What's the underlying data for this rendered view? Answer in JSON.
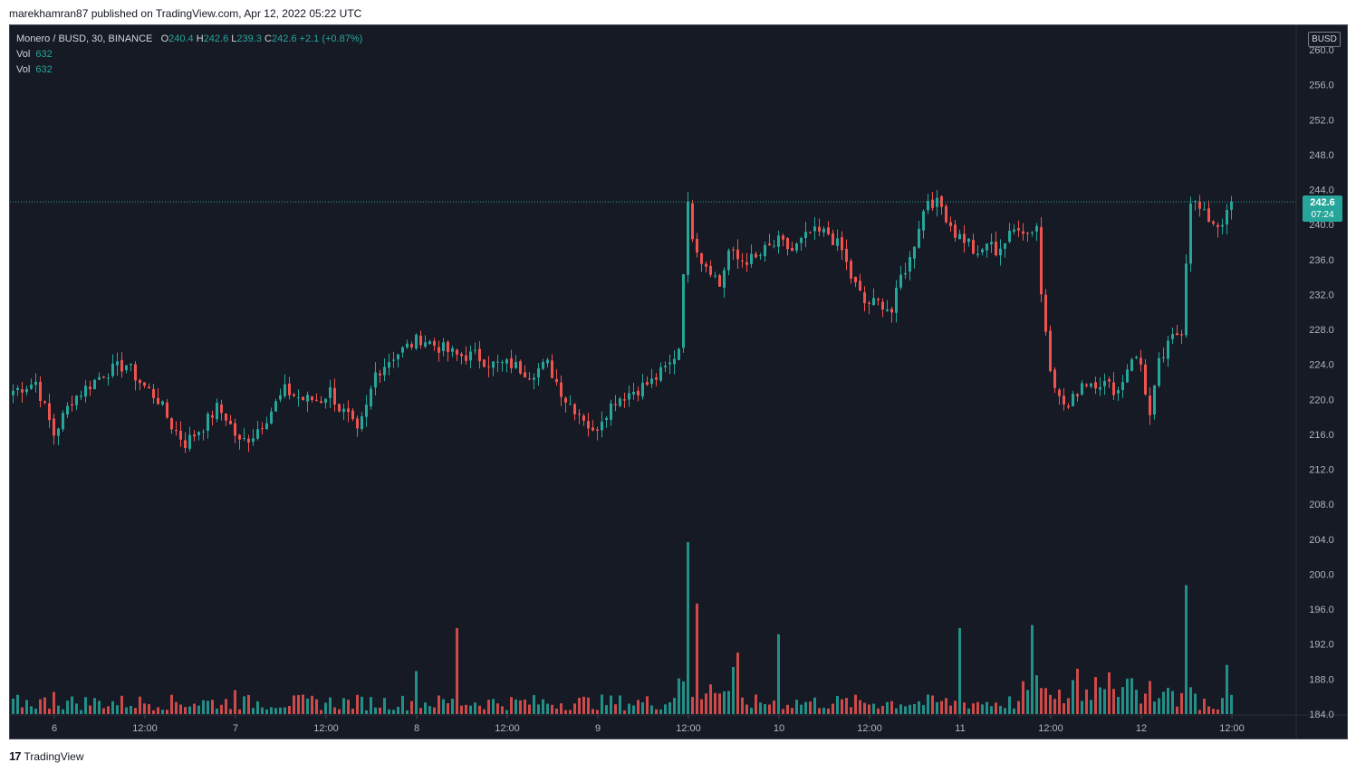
{
  "header": {
    "publisher_text": "marekhamran87 published on TradingView.com, Apr 12, 2022 05:22 UTC"
  },
  "legend": {
    "symbol": "Monero / BUSD, 30, BINANCE",
    "open_label": "O",
    "open": "240.4",
    "high_label": "H",
    "high": "242.6",
    "low_label": "L",
    "low": "239.3",
    "close_label": "C",
    "close": "242.6",
    "change": "+2.1 (+0.87%)",
    "vol1_label": "Vol",
    "vol1": "632",
    "vol2_label": "Vol",
    "vol2": "632"
  },
  "price_axis": {
    "currency": "BUSD",
    "last_price": "242.6",
    "countdown": "07:24"
  },
  "footer": {
    "brand": "TradingView",
    "logo_glyph": "17"
  },
  "colors": {
    "up": "#26a69a",
    "down": "#ef5350",
    "background": "#161a25",
    "axis_text": "#b2b5be"
  },
  "chart_data": {
    "type": "candlestick",
    "symbol": "Monero / BUSD",
    "interval": "30",
    "exchange": "BINANCE",
    "ylim": [
      184,
      260
    ],
    "y_ticks": [
      "184.0",
      "188.0",
      "192.0",
      "196.0",
      "200.0",
      "204.0",
      "208.0",
      "212.0",
      "216.0",
      "220.0",
      "224.0",
      "228.0",
      "232.0",
      "236.0",
      "240.0",
      "244.0",
      "248.0",
      "252.0",
      "256.0",
      "260.0"
    ],
    "x_ticks": [
      {
        "label": "6",
        "bar": 9
      },
      {
        "label": "12:00",
        "bar": 29
      },
      {
        "label": "7",
        "bar": 49
      },
      {
        "label": "12:00",
        "bar": 69
      },
      {
        "label": "8",
        "bar": 89
      },
      {
        "label": "12:00",
        "bar": 109
      },
      {
        "label": "9",
        "bar": 129
      },
      {
        "label": "12:00",
        "bar": 149
      },
      {
        "label": "10",
        "bar": 169
      },
      {
        "label": "12:00",
        "bar": 189
      },
      {
        "label": "11",
        "bar": 209
      },
      {
        "label": "12:00",
        "bar": 229
      },
      {
        "label": "12",
        "bar": 249
      },
      {
        "label": "12:00",
        "bar": 269
      }
    ],
    "bars_total": 286,
    "last_price": 242.6,
    "keypoints": [
      [
        0,
        221
      ],
      [
        5,
        222
      ],
      [
        9,
        216
      ],
      [
        13,
        220
      ],
      [
        20,
        223
      ],
      [
        25,
        224
      ],
      [
        28,
        222
      ],
      [
        32,
        220
      ],
      [
        35,
        217
      ],
      [
        38,
        215
      ],
      [
        42,
        217
      ],
      [
        45,
        219
      ],
      [
        47,
        218
      ],
      [
        50,
        215
      ],
      [
        53,
        216
      ],
      [
        56,
        218
      ],
      [
        60,
        221
      ],
      [
        64,
        220
      ],
      [
        68,
        220
      ],
      [
        70,
        221
      ],
      [
        72,
        219
      ],
      [
        74,
        218
      ],
      [
        76,
        216
      ],
      [
        78,
        219
      ],
      [
        80,
        223
      ],
      [
        84,
        225
      ],
      [
        87,
        226
      ],
      [
        90,
        227
      ],
      [
        94,
        226
      ],
      [
        98,
        225
      ],
      [
        102,
        225
      ],
      [
        106,
        224
      ],
      [
        110,
        224
      ],
      [
        114,
        223
      ],
      [
        118,
        224
      ],
      [
        122,
        220
      ],
      [
        126,
        218
      ],
      [
        128,
        216
      ],
      [
        130,
        218
      ],
      [
        133,
        220
      ],
      [
        137,
        221
      ],
      [
        141,
        222
      ],
      [
        145,
        224
      ],
      [
        147,
        226
      ],
      [
        148,
        235
      ],
      [
        149,
        242
      ],
      [
        150,
        239
      ],
      [
        152,
        236
      ],
      [
        154,
        235
      ],
      [
        156,
        233
      ],
      [
        158,
        237
      ],
      [
        160,
        236
      ],
      [
        164,
        236
      ],
      [
        166,
        237
      ],
      [
        169,
        238
      ],
      [
        172,
        237
      ],
      [
        176,
        239
      ],
      [
        180,
        239
      ],
      [
        183,
        237
      ],
      [
        185,
        234
      ],
      [
        188,
        231
      ],
      [
        192,
        231
      ],
      [
        194,
        230
      ],
      [
        196,
        234
      ],
      [
        198,
        236
      ],
      [
        200,
        240
      ],
      [
        202,
        243
      ],
      [
        205,
        242
      ],
      [
        208,
        239
      ],
      [
        211,
        238
      ],
      [
        213,
        236
      ],
      [
        215,
        238
      ],
      [
        217,
        237
      ],
      [
        219,
        238
      ],
      [
        222,
        240
      ],
      [
        224,
        239
      ],
      [
        226,
        240
      ],
      [
        227,
        232
      ],
      [
        229,
        224
      ],
      [
        231,
        220
      ],
      [
        233,
        219
      ],
      [
        236,
        222
      ],
      [
        240,
        222
      ],
      [
        244,
        221
      ],
      [
        247,
        225
      ],
      [
        249,
        224
      ],
      [
        251,
        218
      ],
      [
        253,
        224
      ],
      [
        256,
        227
      ],
      [
        258,
        228
      ],
      [
        259,
        236
      ],
      [
        260,
        243
      ],
      [
        263,
        241
      ],
      [
        266,
        240
      ],
      [
        268,
        241
      ],
      [
        269,
        242.6
      ]
    ],
    "volume_ylim": [
      0,
      2800
    ],
    "volume_peaks": [
      [
        9,
        360
      ],
      [
        49,
        390
      ],
      [
        89,
        700
      ],
      [
        98,
        1400
      ],
      [
        149,
        2800
      ],
      [
        151,
        1800
      ],
      [
        160,
        1000
      ],
      [
        169,
        1300
      ],
      [
        209,
        1400
      ],
      [
        225,
        1450
      ],
      [
        259,
        2100
      ],
      [
        268,
        800
      ]
    ]
  }
}
